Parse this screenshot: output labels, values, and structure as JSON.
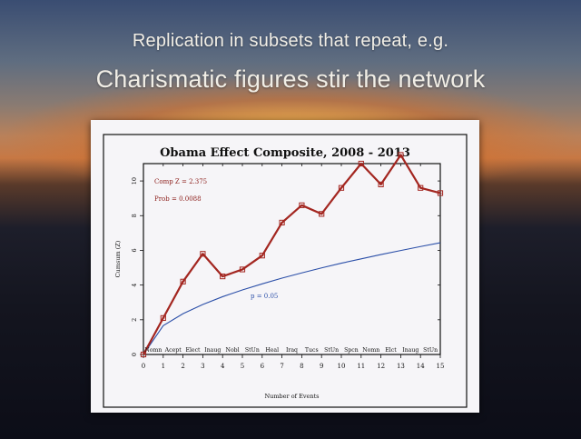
{
  "slide": {
    "title_line1": "Replication in subsets that repeat, e.g.",
    "title_line2": "Charismatic figures stir the network"
  },
  "chart_data": {
    "type": "line",
    "title": "Obama Effect Composite, 2008 - 2013",
    "xlabel": "Number of Events",
    "ylabel": "Cumsum (Z)",
    "xlim": [
      0,
      15
    ],
    "ylim": [
      0,
      11
    ],
    "x_ticks": [
      0,
      1,
      2,
      3,
      4,
      5,
      6,
      7,
      8,
      9,
      10,
      11,
      12,
      13,
      14,
      15
    ],
    "y_ticks": [
      0,
      2,
      4,
      6,
      8,
      10
    ],
    "grid": false,
    "event_labels": [
      "Nomn",
      "Acept",
      "Elect",
      "Inaug",
      "Nobl",
      "StUn",
      "Heal",
      "Iraq",
      "Tucs",
      "StUn",
      "Spcn",
      "Nomn",
      "Elct",
      "Inaug",
      "StUn"
    ],
    "annotations": {
      "comp_z": "Comp Z = 2.375",
      "prob": "Prob = 0.0088",
      "p_curve": "p = 0.05"
    },
    "series": [
      {
        "x": [
          0,
          1,
          2,
          3,
          4,
          5,
          6,
          7,
          8,
          9,
          10,
          11,
          12,
          13,
          14,
          15
        ],
        "values": [
          0,
          2.1,
          4.2,
          5.8,
          4.5,
          4.9,
          5.7,
          7.6,
          8.6,
          8.1,
          9.6,
          11.0,
          9.8,
          11.5,
          9.6,
          9.3
        ],
        "color": "#a32620"
      },
      {
        "x": [
          0,
          1,
          2,
          3,
          4,
          5,
          6,
          7,
          8,
          9,
          10,
          11,
          12,
          13,
          14,
          15
        ],
        "values": [
          0,
          1.66,
          2.35,
          2.88,
          3.33,
          3.72,
          4.07,
          4.4,
          4.7,
          4.99,
          5.26,
          5.51,
          5.76,
          5.99,
          6.22,
          6.44
        ],
        "color": "#2b4fa8"
      }
    ]
  }
}
